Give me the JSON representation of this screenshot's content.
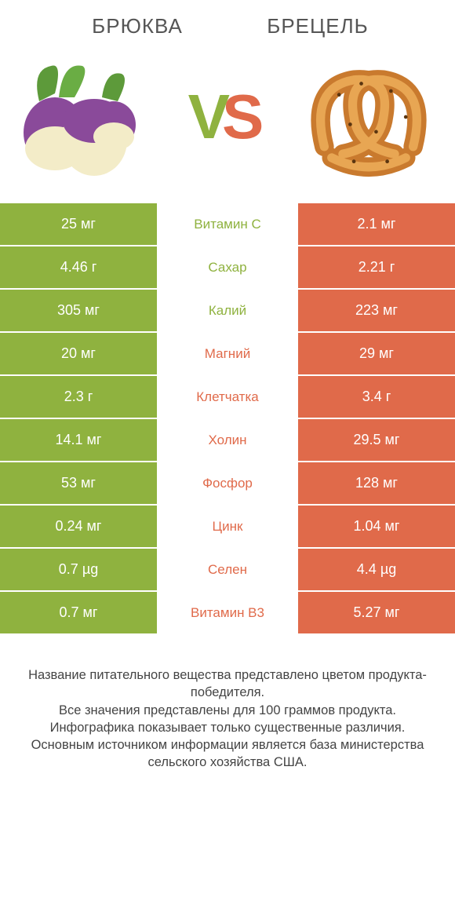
{
  "colors": {
    "green": "#8fb23f",
    "orange": "#e06a4a",
    "text": "#555",
    "white": "#ffffff"
  },
  "leftTitle": "БРЮКВА",
  "rightTitle": "БРЕЦЕЛЬ",
  "vs": {
    "v": "V",
    "s": "S"
  },
  "rows": [
    {
      "left": "25 мг",
      "mid": "Витамин C",
      "right": "2.1 мг",
      "winner": "left"
    },
    {
      "left": "4.46 г",
      "mid": "Сахар",
      "right": "2.21 г",
      "winner": "left"
    },
    {
      "left": "305 мг",
      "mid": "Калий",
      "right": "223 мг",
      "winner": "left"
    },
    {
      "left": "20 мг",
      "mid": "Магний",
      "right": "29 мг",
      "winner": "right"
    },
    {
      "left": "2.3 г",
      "mid": "Клетчатка",
      "right": "3.4 г",
      "winner": "right"
    },
    {
      "left": "14.1 мг",
      "mid": "Холин",
      "right": "29.5 мг",
      "winner": "right"
    },
    {
      "left": "53 мг",
      "mid": "Фосфор",
      "right": "128 мг",
      "winner": "right"
    },
    {
      "left": "0.24 мг",
      "mid": "Цинк",
      "right": "1.04 мг",
      "winner": "right"
    },
    {
      "left": "0.7 µg",
      "mid": "Селен",
      "right": "4.4 µg",
      "winner": "right"
    },
    {
      "left": "0.7 мг",
      "mid": "Витамин B3",
      "right": "5.27 мг",
      "winner": "right"
    }
  ],
  "footer": "Название питательного вещества представлено цветом продукта-победителя.\nВсе значения представлены для 100 граммов продукта.\nИнфографика показывает только существенные различия.\nОсновным источником информации является база министерства сельского хозяйства США."
}
